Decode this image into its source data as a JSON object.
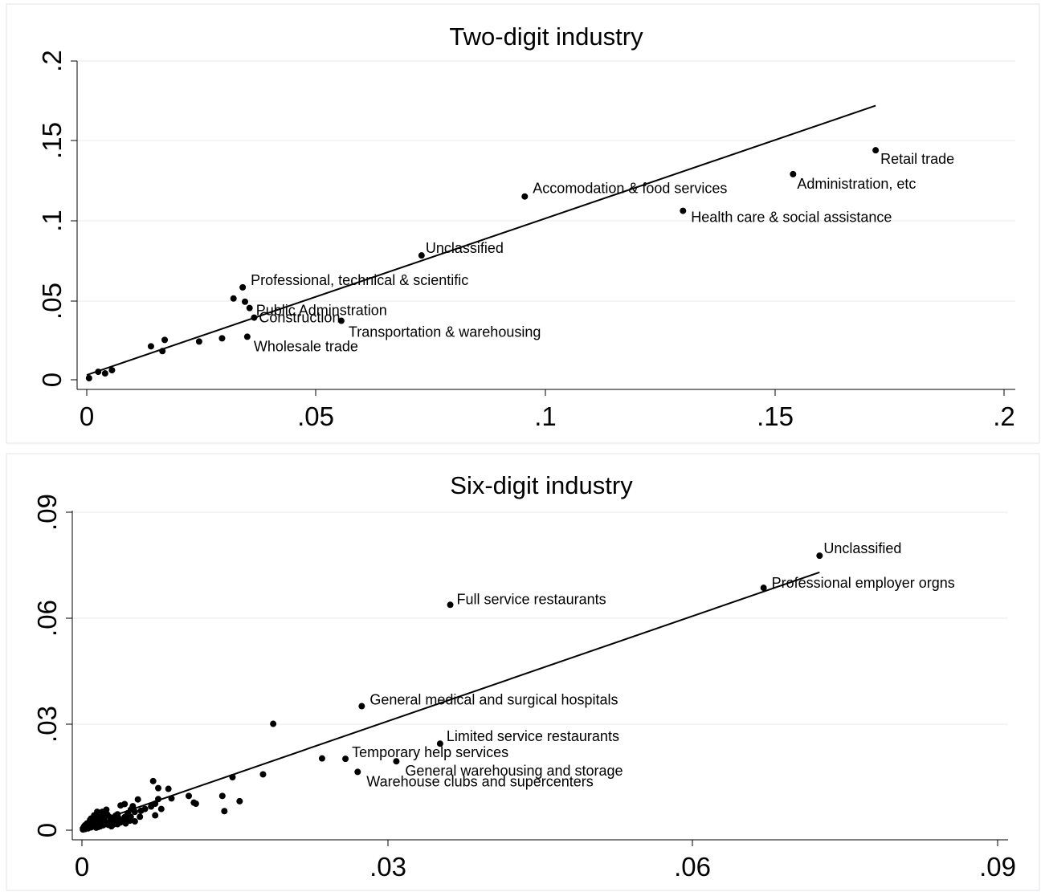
{
  "chart_data": [
    {
      "type": "scatter",
      "title": "Two-digit industry",
      "xlabel": "",
      "ylabel": "",
      "xlim": [
        0,
        0.2
      ],
      "ylim": [
        0,
        0.2
      ],
      "grid": true,
      "x_tick_labels": [
        "0",
        ".05",
        ".1",
        ".15",
        ".2"
      ],
      "y_tick_labels": [
        "0",
        ".05",
        ".1",
        ".15",
        ".2"
      ],
      "fit_line": {
        "x": [
          0,
          0.172
        ],
        "y": [
          0.003,
          0.172
        ]
      },
      "points": [
        {
          "x": 0.0005,
          "y": 0.001,
          "label": ""
        },
        {
          "x": 0.0025,
          "y": 0.005,
          "label": ""
        },
        {
          "x": 0.004,
          "y": 0.004,
          "label": ""
        },
        {
          "x": 0.0055,
          "y": 0.006,
          "label": ""
        },
        {
          "x": 0.014,
          "y": 0.021,
          "label": ""
        },
        {
          "x": 0.0165,
          "y": 0.018,
          "label": ""
        },
        {
          "x": 0.017,
          "y": 0.025,
          "label": ""
        },
        {
          "x": 0.0245,
          "y": 0.024,
          "label": ""
        },
        {
          "x": 0.0295,
          "y": 0.026,
          "label": ""
        },
        {
          "x": 0.032,
          "y": 0.051,
          "label": ""
        },
        {
          "x": 0.034,
          "y": 0.058,
          "label": "Professional, technical & scientific"
        },
        {
          "x": 0.0345,
          "y": 0.049,
          "label": ""
        },
        {
          "x": 0.0355,
          "y": 0.045,
          "label": "Public Adminstration"
        },
        {
          "x": 0.0365,
          "y": 0.039,
          "label": "Construction"
        },
        {
          "x": 0.035,
          "y": 0.027,
          "label": "Wholesale trade"
        },
        {
          "x": 0.0555,
          "y": 0.037,
          "label": "Transportation & warehousing"
        },
        {
          "x": 0.073,
          "y": 0.078,
          "label": "Unclassified"
        },
        {
          "x": 0.0955,
          "y": 0.115,
          "label": "Accomodation & food services"
        },
        {
          "x": 0.13,
          "y": 0.106,
          "label": "Health care & social assistance"
        },
        {
          "x": 0.154,
          "y": 0.129,
          "label": "Administration, etc"
        },
        {
          "x": 0.172,
          "y": 0.144,
          "label": "Retail trade"
        }
      ]
    },
    {
      "type": "scatter",
      "title": "Six-digit industry",
      "xlabel": "",
      "ylabel": "",
      "xlim": [
        0,
        0.09
      ],
      "ylim": [
        0,
        0.09
      ],
      "grid": true,
      "x_tick_labels": [
        "0",
        ".03",
        ".06",
        ".09"
      ],
      "y_tick_labels": [
        "0",
        ".03",
        ".06",
        ".09"
      ],
      "fit_line": {
        "x": [
          0,
          0.0725
        ],
        "y": [
          0.001,
          0.073
        ]
      },
      "points": [
        {
          "x": 0.0725,
          "y": 0.0777,
          "label": "Unclassified"
        },
        {
          "x": 0.067,
          "y": 0.0686,
          "label": "Professional employer orgns"
        },
        {
          "x": 0.0362,
          "y": 0.0638,
          "label": "Full service restaurants"
        },
        {
          "x": 0.0275,
          "y": 0.0351,
          "label": "General medical and surgical hospitals"
        },
        {
          "x": 0.0352,
          "y": 0.0245,
          "label": "Limited service restaurants"
        },
        {
          "x": 0.0259,
          "y": 0.0202,
          "label": "Temporary help services"
        },
        {
          "x": 0.0309,
          "y": 0.0195,
          "label": "General warehousing and storage"
        },
        {
          "x": 0.0271,
          "y": 0.0165,
          "label": "Warehouse clubs and supercenters"
        },
        {
          "x": 0.0188,
          "y": 0.0301,
          "label": ""
        },
        {
          "x": 0.0236,
          "y": 0.0203,
          "label": ""
        },
        {
          "x": 0.0178,
          "y": 0.0158,
          "label": ""
        },
        {
          "x": 0.0148,
          "y": 0.015,
          "label": ""
        },
        {
          "x": 0.0155,
          "y": 0.0082,
          "label": ""
        },
        {
          "x": 0.0138,
          "y": 0.0097,
          "label": ""
        },
        {
          "x": 0.014,
          "y": 0.0054,
          "label": ""
        },
        {
          "x": 0.011,
          "y": 0.0078,
          "label": ""
        },
        {
          "x": 0.0105,
          "y": 0.0097,
          "label": ""
        },
        {
          "x": 0.0112,
          "y": 0.0075,
          "label": ""
        },
        {
          "x": 0.0085,
          "y": 0.0117,
          "label": ""
        },
        {
          "x": 0.0088,
          "y": 0.009,
          "label": ""
        },
        {
          "x": 0.0075,
          "y": 0.0119,
          "label": ""
        },
        {
          "x": 0.007,
          "y": 0.0139,
          "label": ""
        },
        {
          "x": 0.0072,
          "y": 0.0075,
          "label": ""
        },
        {
          "x": 0.0075,
          "y": 0.0088,
          "label": ""
        },
        {
          "x": 0.0068,
          "y": 0.0067,
          "label": ""
        },
        {
          "x": 0.0062,
          "y": 0.006,
          "label": ""
        },
        {
          "x": 0.0058,
          "y": 0.0055,
          "label": ""
        },
        {
          "x": 0.0072,
          "y": 0.0042,
          "label": ""
        },
        {
          "x": 0.0078,
          "y": 0.006,
          "label": ""
        },
        {
          "x": 0.0055,
          "y": 0.0087,
          "label": ""
        },
        {
          "x": 0.005,
          "y": 0.0068,
          "label": ""
        },
        {
          "x": 0.0038,
          "y": 0.007,
          "label": ""
        },
        {
          "x": 0.0042,
          "y": 0.0074,
          "label": ""
        },
        {
          "x": 0.0045,
          "y": 0.0048,
          "label": ""
        },
        {
          "x": 0.0048,
          "y": 0.0058,
          "label": ""
        },
        {
          "x": 0.0052,
          "y": 0.0052,
          "label": ""
        },
        {
          "x": 0.0048,
          "y": 0.0038,
          "label": ""
        },
        {
          "x": 0.0052,
          "y": 0.0025,
          "label": ""
        },
        {
          "x": 0.0045,
          "y": 0.0031,
          "label": ""
        },
        {
          "x": 0.0042,
          "y": 0.0037,
          "label": ""
        },
        {
          "x": 0.004,
          "y": 0.0025,
          "label": ""
        },
        {
          "x": 0.0036,
          "y": 0.0034,
          "label": ""
        },
        {
          "x": 0.0035,
          "y": 0.0017,
          "label": ""
        },
        {
          "x": 0.0032,
          "y": 0.0028,
          "label": ""
        },
        {
          "x": 0.003,
          "y": 0.0022,
          "label": ""
        },
        {
          "x": 0.0028,
          "y": 0.0036,
          "label": ""
        },
        {
          "x": 0.0026,
          "y": 0.0015,
          "label": ""
        },
        {
          "x": 0.0025,
          "y": 0.0044,
          "label": ""
        },
        {
          "x": 0.0024,
          "y": 0.0058,
          "label": ""
        },
        {
          "x": 0.0022,
          "y": 0.0028,
          "label": ""
        },
        {
          "x": 0.002,
          "y": 0.0039,
          "label": ""
        },
        {
          "x": 0.002,
          "y": 0.0052,
          "label": ""
        },
        {
          "x": 0.0018,
          "y": 0.0018,
          "label": ""
        },
        {
          "x": 0.0017,
          "y": 0.0033,
          "label": ""
        },
        {
          "x": 0.0016,
          "y": 0.0024,
          "label": ""
        },
        {
          "x": 0.0015,
          "y": 0.0041,
          "label": ""
        },
        {
          "x": 0.0015,
          "y": 0.0052,
          "label": ""
        },
        {
          "x": 0.0013,
          "y": 0.0012,
          "label": ""
        },
        {
          "x": 0.0012,
          "y": 0.0026,
          "label": ""
        },
        {
          "x": 0.0011,
          "y": 0.0035,
          "label": ""
        },
        {
          "x": 0.001,
          "y": 0.0018,
          "label": ""
        },
        {
          "x": 0.0009,
          "y": 0.0008,
          "label": ""
        },
        {
          "x": 0.0008,
          "y": 0.0029,
          "label": ""
        },
        {
          "x": 0.0008,
          "y": 0.0015,
          "label": ""
        },
        {
          "x": 0.0007,
          "y": 0.0022,
          "label": ""
        },
        {
          "x": 0.0006,
          "y": 0.0005,
          "label": ""
        },
        {
          "x": 0.0005,
          "y": 0.0012,
          "label": ""
        },
        {
          "x": 0.0005,
          "y": 0.0019,
          "label": ""
        },
        {
          "x": 0.0004,
          "y": 0.0008,
          "label": ""
        },
        {
          "x": 0.0003,
          "y": 0.0003,
          "label": ""
        },
        {
          "x": 0.0003,
          "y": 0.0014,
          "label": ""
        },
        {
          "x": 0.0002,
          "y": 0.0006,
          "label": ""
        },
        {
          "x": 0.0002,
          "y": 0.001,
          "label": ""
        },
        {
          "x": 0.0001,
          "y": 0.0002,
          "label": ""
        },
        {
          "x": 0.0001,
          "y": 0.0005,
          "label": ""
        },
        {
          "x": 0.0014,
          "y": 0.0007,
          "label": ""
        },
        {
          "x": 0.0018,
          "y": 0.0011,
          "label": ""
        },
        {
          "x": 0.0021,
          "y": 0.0014,
          "label": ""
        },
        {
          "x": 0.0023,
          "y": 0.002,
          "label": ""
        },
        {
          "x": 0.0027,
          "y": 0.0023,
          "label": ""
        },
        {
          "x": 0.0031,
          "y": 0.0016,
          "label": ""
        },
        {
          "x": 0.0033,
          "y": 0.0041,
          "label": ""
        },
        {
          "x": 0.0038,
          "y": 0.0022,
          "label": ""
        },
        {
          "x": 0.0043,
          "y": 0.0019,
          "label": ""
        },
        {
          "x": 0.0047,
          "y": 0.0027,
          "label": ""
        },
        {
          "x": 0.0057,
          "y": 0.0038,
          "label": ""
        },
        {
          "x": 0.0012,
          "y": 0.0042,
          "label": ""
        },
        {
          "x": 0.0009,
          "y": 0.0033,
          "label": ""
        },
        {
          "x": 0.0016,
          "y": 0.0009,
          "label": ""
        },
        {
          "x": 0.0029,
          "y": 0.0011,
          "label": ""
        },
        {
          "x": 0.0035,
          "y": 0.0045,
          "label": ""
        }
      ]
    }
  ]
}
